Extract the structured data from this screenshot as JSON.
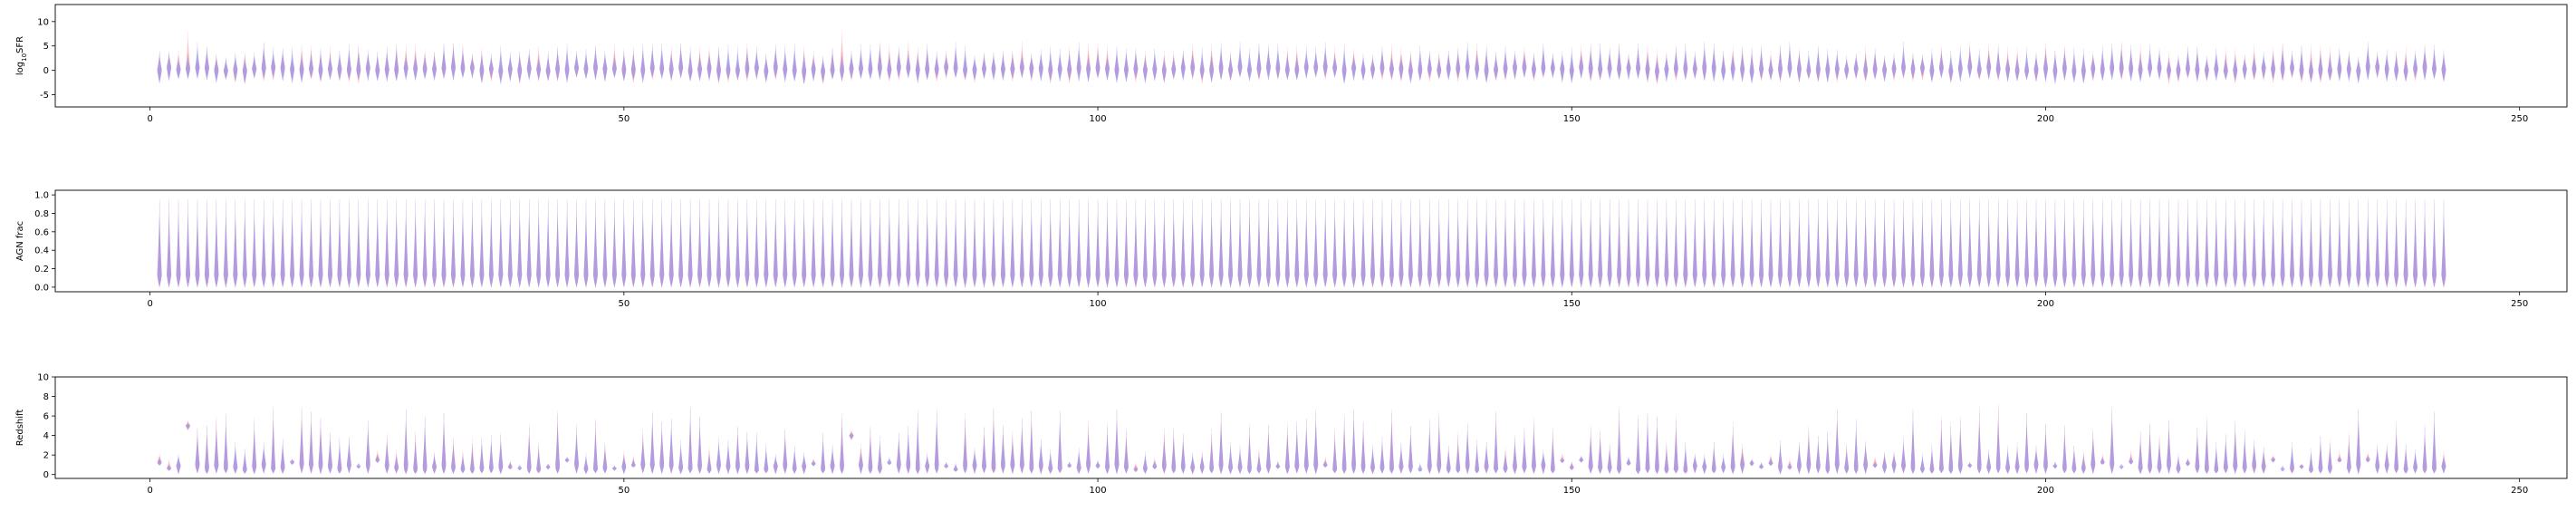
{
  "chart_data": [
    {
      "type": "violin",
      "xlabel": "",
      "ylabel": "log₁₀SFR",
      "ylabel_main": "log",
      "ylabel_sub": "10",
      "ylabel_tail": "SFR",
      "xlim": [
        -10,
        255
      ],
      "ylim": [
        -7.5,
        13.5
      ],
      "xticks": [
        0,
        50,
        100,
        150,
        200,
        250
      ],
      "yticks": [
        -5,
        0,
        5,
        10
      ],
      "n_violins": 242,
      "colors": {
        "series_a": "#8a86ee",
        "series_b": "#ff9a9a",
        "overlap": "#b074cc"
      },
      "profile": {
        "median_typical": 0.3,
        "p05_typical": -1.9,
        "p95_typical": 3.8,
        "max_observed": 8.2
      }
    },
    {
      "type": "violin",
      "xlabel": "",
      "ylabel": "AGN frac",
      "xlim": [
        -10,
        255
      ],
      "ylim": [
        -0.05,
        1.05
      ],
      "xticks": [
        0,
        50,
        100,
        150,
        200,
        250
      ],
      "yticks": [
        0.0,
        0.2,
        0.4,
        0.6,
        0.8,
        1.0
      ],
      "n_violins": 242,
      "colors": {
        "series_a": "#8a86ee",
        "series_b": "#ff9a9a",
        "overlap": "#b074cc"
      },
      "profile": {
        "min": 0.0,
        "max_typical": 0.95,
        "dense_region": [
          0.0,
          0.35
        ]
      }
    },
    {
      "type": "violin",
      "xlabel": "",
      "ylabel": "Redshift",
      "xlim": [
        -10,
        255
      ],
      "ylim": [
        -0.4,
        10
      ],
      "xticks": [
        0,
        50,
        100,
        150,
        200,
        250
      ],
      "yticks": [
        0,
        2,
        4,
        6,
        8,
        10
      ],
      "n_violins": 242,
      "colors": {
        "series_a": "#8a86ee",
        "series_b": "#ff9a9a",
        "overlap": "#b074cc"
      },
      "profile": {
        "min_typical": 0.0,
        "max_typical": 6.8,
        "narrow_near_x": [
          4,
          74
        ]
      }
    }
  ]
}
